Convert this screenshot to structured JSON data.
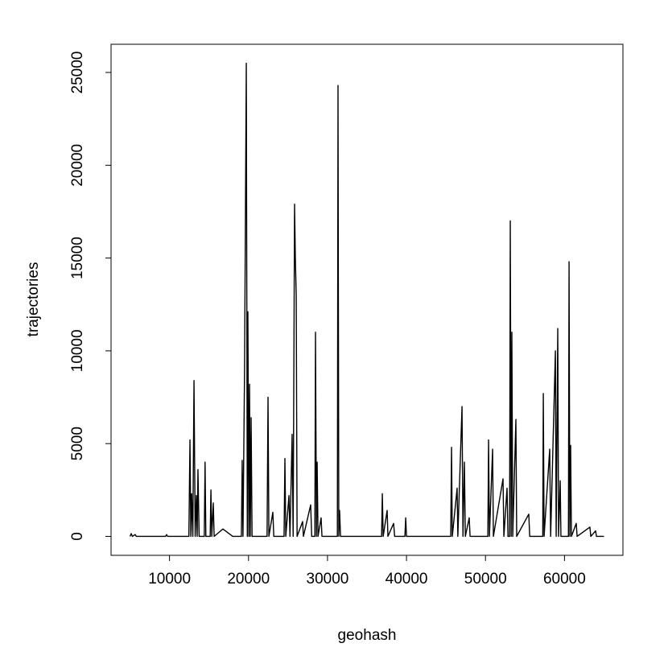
{
  "chart_data": {
    "type": "line",
    "xlabel": "geohash",
    "ylabel": "trajectories",
    "x": [
      5000,
      5150,
      5300,
      5650,
      5800,
      9500,
      9630,
      9750,
      12450,
      12590,
      12700,
      12800,
      12950,
      13100,
      13250,
      13400,
      13500,
      13600,
      13750,
      14400,
      14500,
      14600,
      15150,
      15240,
      15350,
      15540,
      15650,
      16760,
      18000,
      19100,
      19200,
      19300,
      19500,
      19720,
      19850,
      19920,
      20050,
      20130,
      20230,
      20330,
      20450,
      22350,
      22470,
      22580,
      23080,
      23200,
      24500,
      24610,
      24720,
      25120,
      25250,
      25520,
      25650,
      25830,
      25930,
      26040,
      26150,
      26850,
      26950,
      27870,
      28000,
      28400,
      28480,
      28600,
      28690,
      28800,
      29190,
      29300,
      31250,
      31330,
      31430,
      31530,
      31650,
      36850,
      36940,
      37050,
      37550,
      37650,
      38370,
      38500,
      39800,
      39900,
      40000,
      45600,
      45700,
      45800,
      46410,
      46500,
      47030,
      47150,
      47330,
      47450,
      47940,
      48050,
      50300,
      50390,
      50500,
      50900,
      51000,
      52220,
      52330,
      52730,
      52850,
      53050,
      53140,
      53250,
      53340,
      53450,
      53850,
      53950,
      55480,
      55600,
      57250,
      57320,
      57420,
      58130,
      58250,
      58850,
      58950,
      59150,
      59250,
      59460,
      59550,
      60500,
      60580,
      60680,
      60780,
      60880,
      61490,
      61600,
      63220,
      63330,
      63940,
      64050,
      65000
    ],
    "series": [
      {
        "name": "trajectories",
        "color": "#000000",
        "values": [
          0,
          150,
          0,
          100,
          0,
          0,
          100,
          0,
          0,
          5200,
          0,
          2300,
          0,
          8400,
          0,
          2200,
          0,
          3600,
          0,
          0,
          4000,
          0,
          0,
          2500,
          0,
          1800,
          0,
          400,
          0,
          0,
          4100,
          0,
          9000,
          25500,
          0,
          12100,
          0,
          8200,
          0,
          6400,
          0,
          0,
          7500,
          0,
          1300,
          0,
          0,
          4200,
          0,
          2200,
          0,
          5500,
          0,
          17900,
          15000,
          13000,
          0,
          800,
          0,
          1700,
          0,
          0,
          11000,
          0,
          4000,
          0,
          1000,
          0,
          0,
          24300,
          0,
          1400,
          0,
          0,
          2300,
          0,
          1400,
          0,
          700,
          0,
          0,
          1000,
          0,
          0,
          4800,
          0,
          2600,
          0,
          7000,
          0,
          4000,
          0,
          1000,
          0,
          0,
          5200,
          0,
          4700,
          0,
          3100,
          0,
          2600,
          0,
          0,
          17000,
          0,
          11000,
          0,
          6300,
          0,
          1200,
          0,
          0,
          7700,
          0,
          4700,
          0,
          10000,
          0,
          11200,
          0,
          3000,
          0,
          0,
          14800,
          0,
          4900,
          0,
          700,
          0,
          500,
          0,
          300,
          0,
          0
        ]
      }
    ],
    "xlim": [
      2600,
      67400
    ],
    "ylim": [
      -1020,
      26520
    ],
    "xticks": [
      10000,
      20000,
      30000,
      40000,
      50000,
      60000
    ],
    "yticks": [
      0,
      5000,
      10000,
      15000,
      20000,
      25000
    ]
  }
}
